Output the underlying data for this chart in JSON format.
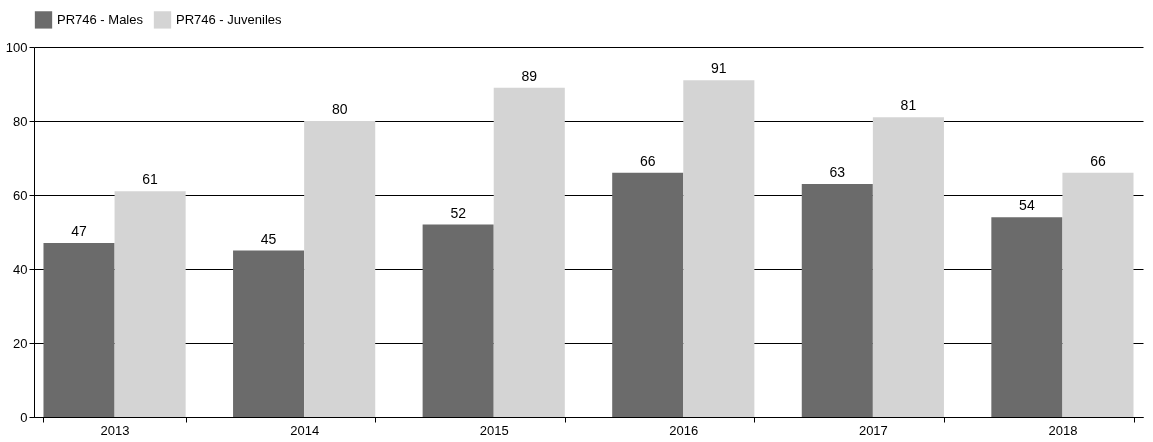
{
  "chart_data": {
    "type": "bar",
    "categories": [
      "2013",
      "2014",
      "2015",
      "2016",
      "2017",
      "2018"
    ],
    "series": [
      {
        "name": "PR746 - Males",
        "color": "#6b6b6b",
        "values": [
          47,
          45,
          52,
          66,
          63,
          54
        ]
      },
      {
        "name": "PR746 - Juveniles",
        "color": "#d4d4d4",
        "values": [
          61,
          80,
          89,
          91,
          81,
          66
        ]
      }
    ],
    "ylim": [
      0,
      100
    ],
    "yticks": [
      0,
      20,
      40,
      60,
      80,
      100
    ],
    "grid": "y",
    "legend": "top",
    "data_labels": true
  }
}
